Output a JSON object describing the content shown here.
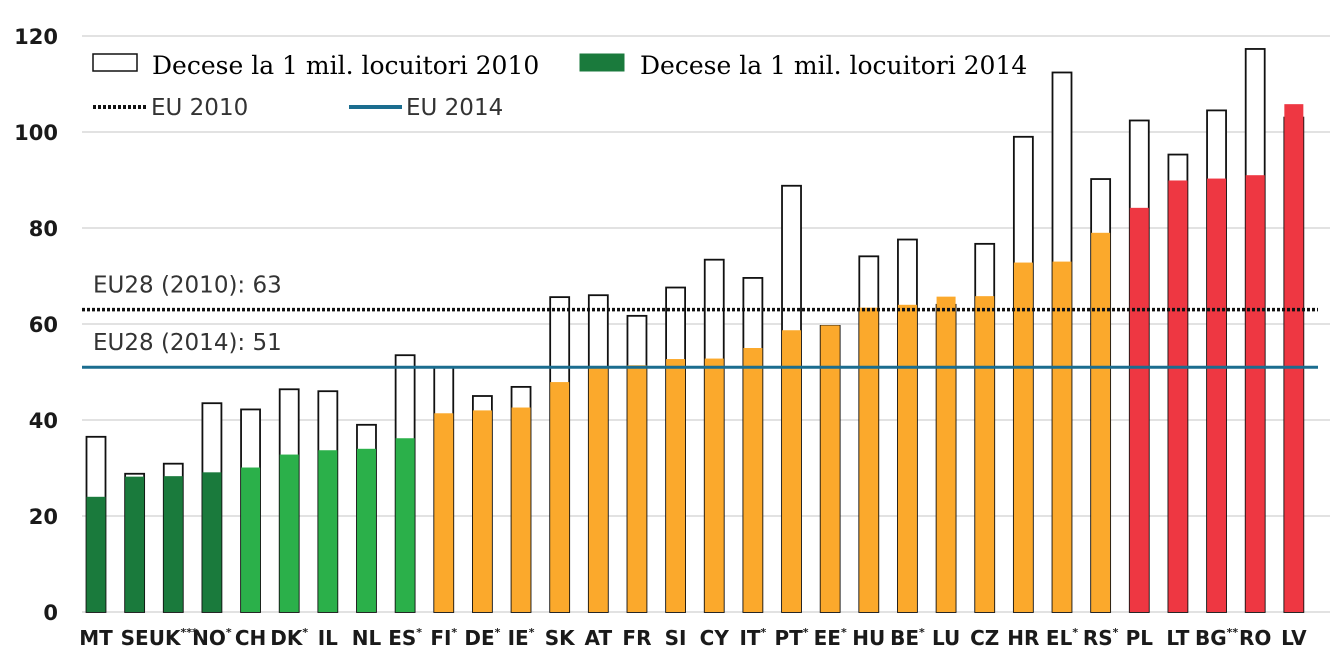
{
  "chart_data": {
    "type": "bar",
    "ylim": [
      0,
      120
    ],
    "yticks": [
      0,
      20,
      40,
      60,
      80,
      100,
      120
    ],
    "grid": true,
    "legend_position": "top-left",
    "categories": [
      {
        "label": "MT",
        "sup": ""
      },
      {
        "label": "SE",
        "sup": ""
      },
      {
        "label": "UK",
        "sup": "***"
      },
      {
        "label": "NO",
        "sup": "*"
      },
      {
        "label": "CH",
        "sup": ""
      },
      {
        "label": "DK",
        "sup": "*"
      },
      {
        "label": "IL",
        "sup": ""
      },
      {
        "label": "NL",
        "sup": ""
      },
      {
        "label": "ES",
        "sup": "*"
      },
      {
        "label": "FI",
        "sup": "*"
      },
      {
        "label": "DE",
        "sup": "*"
      },
      {
        "label": "IE",
        "sup": "*"
      },
      {
        "label": "SK",
        "sup": ""
      },
      {
        "label": "AT",
        "sup": ""
      },
      {
        "label": "FR",
        "sup": ""
      },
      {
        "label": "SI",
        "sup": ""
      },
      {
        "label": "CY",
        "sup": ""
      },
      {
        "label": "IT",
        "sup": "*"
      },
      {
        "label": "PT",
        "sup": "*"
      },
      {
        "label": "EE",
        "sup": "*"
      },
      {
        "label": "HU",
        "sup": ""
      },
      {
        "label": "BE",
        "sup": "*"
      },
      {
        "label": "LU",
        "sup": ""
      },
      {
        "label": "CZ",
        "sup": ""
      },
      {
        "label": "HR",
        "sup": ""
      },
      {
        "label": "EL",
        "sup": "*"
      },
      {
        "label": "RS",
        "sup": "*"
      },
      {
        "label": "PL",
        "sup": ""
      },
      {
        "label": "LT",
        "sup": ""
      },
      {
        "label": "BG",
        "sup": "**"
      },
      {
        "label": "RO",
        "sup": ""
      },
      {
        "label": "LV",
        "sup": ""
      }
    ],
    "series": [
      {
        "name": "Decese la 1 mil. locuitori 2010",
        "style": "outline",
        "values": [
          36.5,
          28.8,
          30.9,
          43.5,
          42.2,
          46.4,
          46.0,
          39.0,
          53.5,
          51.0,
          45.0,
          46.9,
          65.6,
          66.0,
          61.7,
          67.6,
          73.4,
          69.6,
          88.8,
          59.6,
          74.1,
          77.6,
          64.0,
          76.7,
          99.0,
          112.4,
          90.2,
          102.4,
          95.3,
          104.5,
          117.3,
          103.0
        ]
      },
      {
        "name": "Decese la 1 mil. locuitori 2014",
        "style": "filled",
        "values": [
          24.0,
          28.2,
          28.3,
          29.1,
          30.1,
          32.8,
          33.7,
          34.0,
          36.2,
          41.4,
          42.0,
          42.6,
          47.9,
          51.0,
          51.4,
          52.7,
          52.8,
          55.0,
          58.7,
          59.7,
          63.4,
          64.0,
          65.7,
          65.8,
          72.8,
          73.0,
          79.0,
          84.2,
          89.9,
          90.3,
          91.0,
          105.8
        ]
      }
    ],
    "bar_color_groups": [
      {
        "color": "#1a7a3c",
        "from": 0,
        "to": 3
      },
      {
        "color": "#2bb04a",
        "from": 4,
        "to": 8
      },
      {
        "color": "#fba92c",
        "from": 9,
        "to": 26
      },
      {
        "color": "#ee3742",
        "from": 27,
        "to": 31
      }
    ],
    "reference_lines": [
      {
        "name": "EU 2010",
        "label": "EU28 (2010): 63",
        "value": 63,
        "style": "dotted",
        "color": "#111111"
      },
      {
        "name": "EU 2014",
        "label": "EU28 (2014): 51",
        "value": 51,
        "style": "solid",
        "color": "#1b6d8f"
      }
    ],
    "legend": {
      "items": [
        {
          "label": "Decese la 1 mil. locuitori 2010",
          "swatch": "outline"
        },
        {
          "label": "Decese la 1 mil. locuitori 2014",
          "swatch": "filled",
          "color": "#1a7a3c"
        },
        {
          "label": "EU 2010",
          "swatch": "dotted-line"
        },
        {
          "label": "EU 2014",
          "swatch": "solid-line",
          "color": "#1b6d8f"
        }
      ]
    },
    "colors": {
      "grid": "#d9d9d9",
      "outline": "#111111"
    }
  }
}
